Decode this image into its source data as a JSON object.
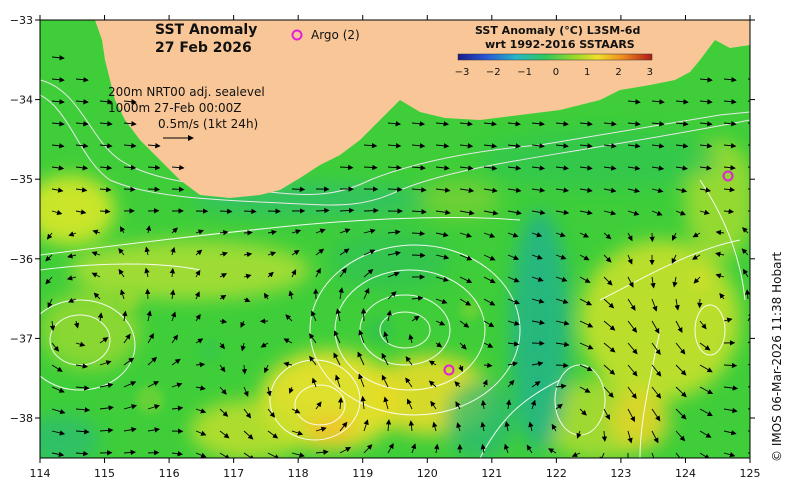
{
  "map": {
    "title_line1": "SST Anomaly",
    "title_line2": "27 Feb 2026",
    "argo_label": "Argo (2)",
    "legend_line1": "SST Anomaly (°C) L3SM-6d",
    "legend_line2": "wrt 1992-2016 SSTAARS",
    "colorbar_ticks": [
      "−3",
      "−2",
      "−1",
      "0",
      "1",
      "2",
      "3"
    ],
    "info_line1": "200m   NRT00 adj. sealevel",
    "info_line2": "1000m 27-Feb 00:00Z",
    "info_line3": "0.5m/s (1kt 24h)",
    "credit": "© IMOS 06-Mar-2026 11:38 Hobart",
    "x_ticks": [
      "114",
      "115",
      "116",
      "117",
      "118",
      "119",
      "120",
      "121",
      "122",
      "123",
      "124",
      "125"
    ],
    "y_ticks": [
      "−33",
      "−34",
      "−35",
      "−36",
      "−37",
      "−38"
    ]
  },
  "colors": {
    "land": "#f9c797",
    "ocean_base": "#3fce3a",
    "warm": "#d9e82a",
    "cool": "#24b584",
    "argo": "#e020d8"
  }
}
